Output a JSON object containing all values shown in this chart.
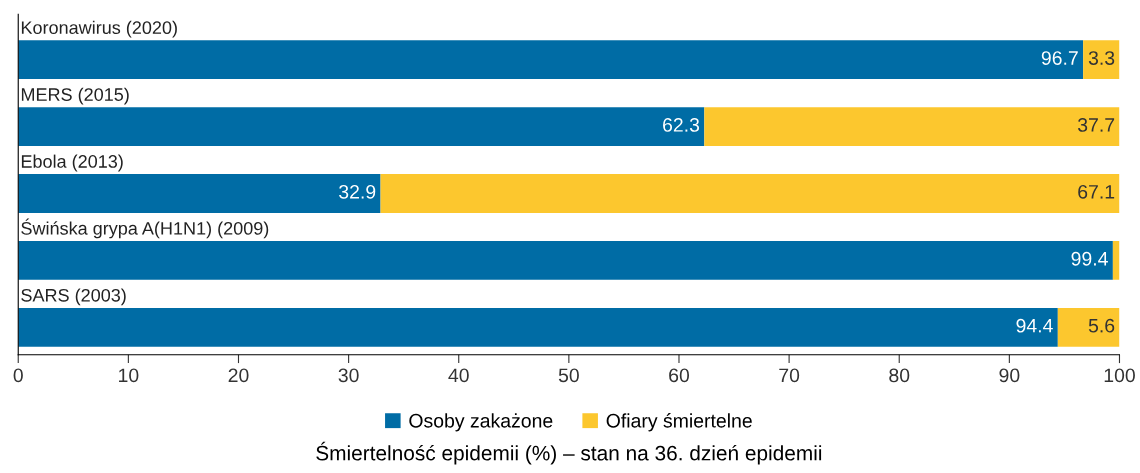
{
  "chart_data": {
    "type": "bar",
    "orientation": "horizontal",
    "stacked": true,
    "categories": [
      "Koronawirus (2020)",
      "MERS (2015)",
      "Ebola (2013)",
      "Świńska grypa A(H1N1) (2009)",
      "SARS (2003)"
    ],
    "series": [
      {
        "name": "Osoby zakażone",
        "color": "#006ca5",
        "values": [
          96.7,
          62.3,
          32.9,
          99.4,
          94.4
        ],
        "value_labels": [
          "96.7",
          "62.3",
          "32.9",
          "99.4",
          "94.4"
        ]
      },
      {
        "name": "Ofiary śmiertelne",
        "color": "#fcc72e",
        "values": [
          3.3,
          37.7,
          67.1,
          0.6,
          5.6
        ],
        "value_labels": [
          "3.3",
          "37.7",
          "67.1",
          null,
          "5.6"
        ]
      }
    ],
    "xlim": [
      0,
      100
    ],
    "xticks": [
      0,
      10,
      20,
      30,
      40,
      50,
      60,
      70,
      80,
      90,
      100
    ],
    "xlabel": "Śmiertelność epidemii (%) – stan na 36. dzień epidemii",
    "legend": "bottom",
    "grid": false
  }
}
